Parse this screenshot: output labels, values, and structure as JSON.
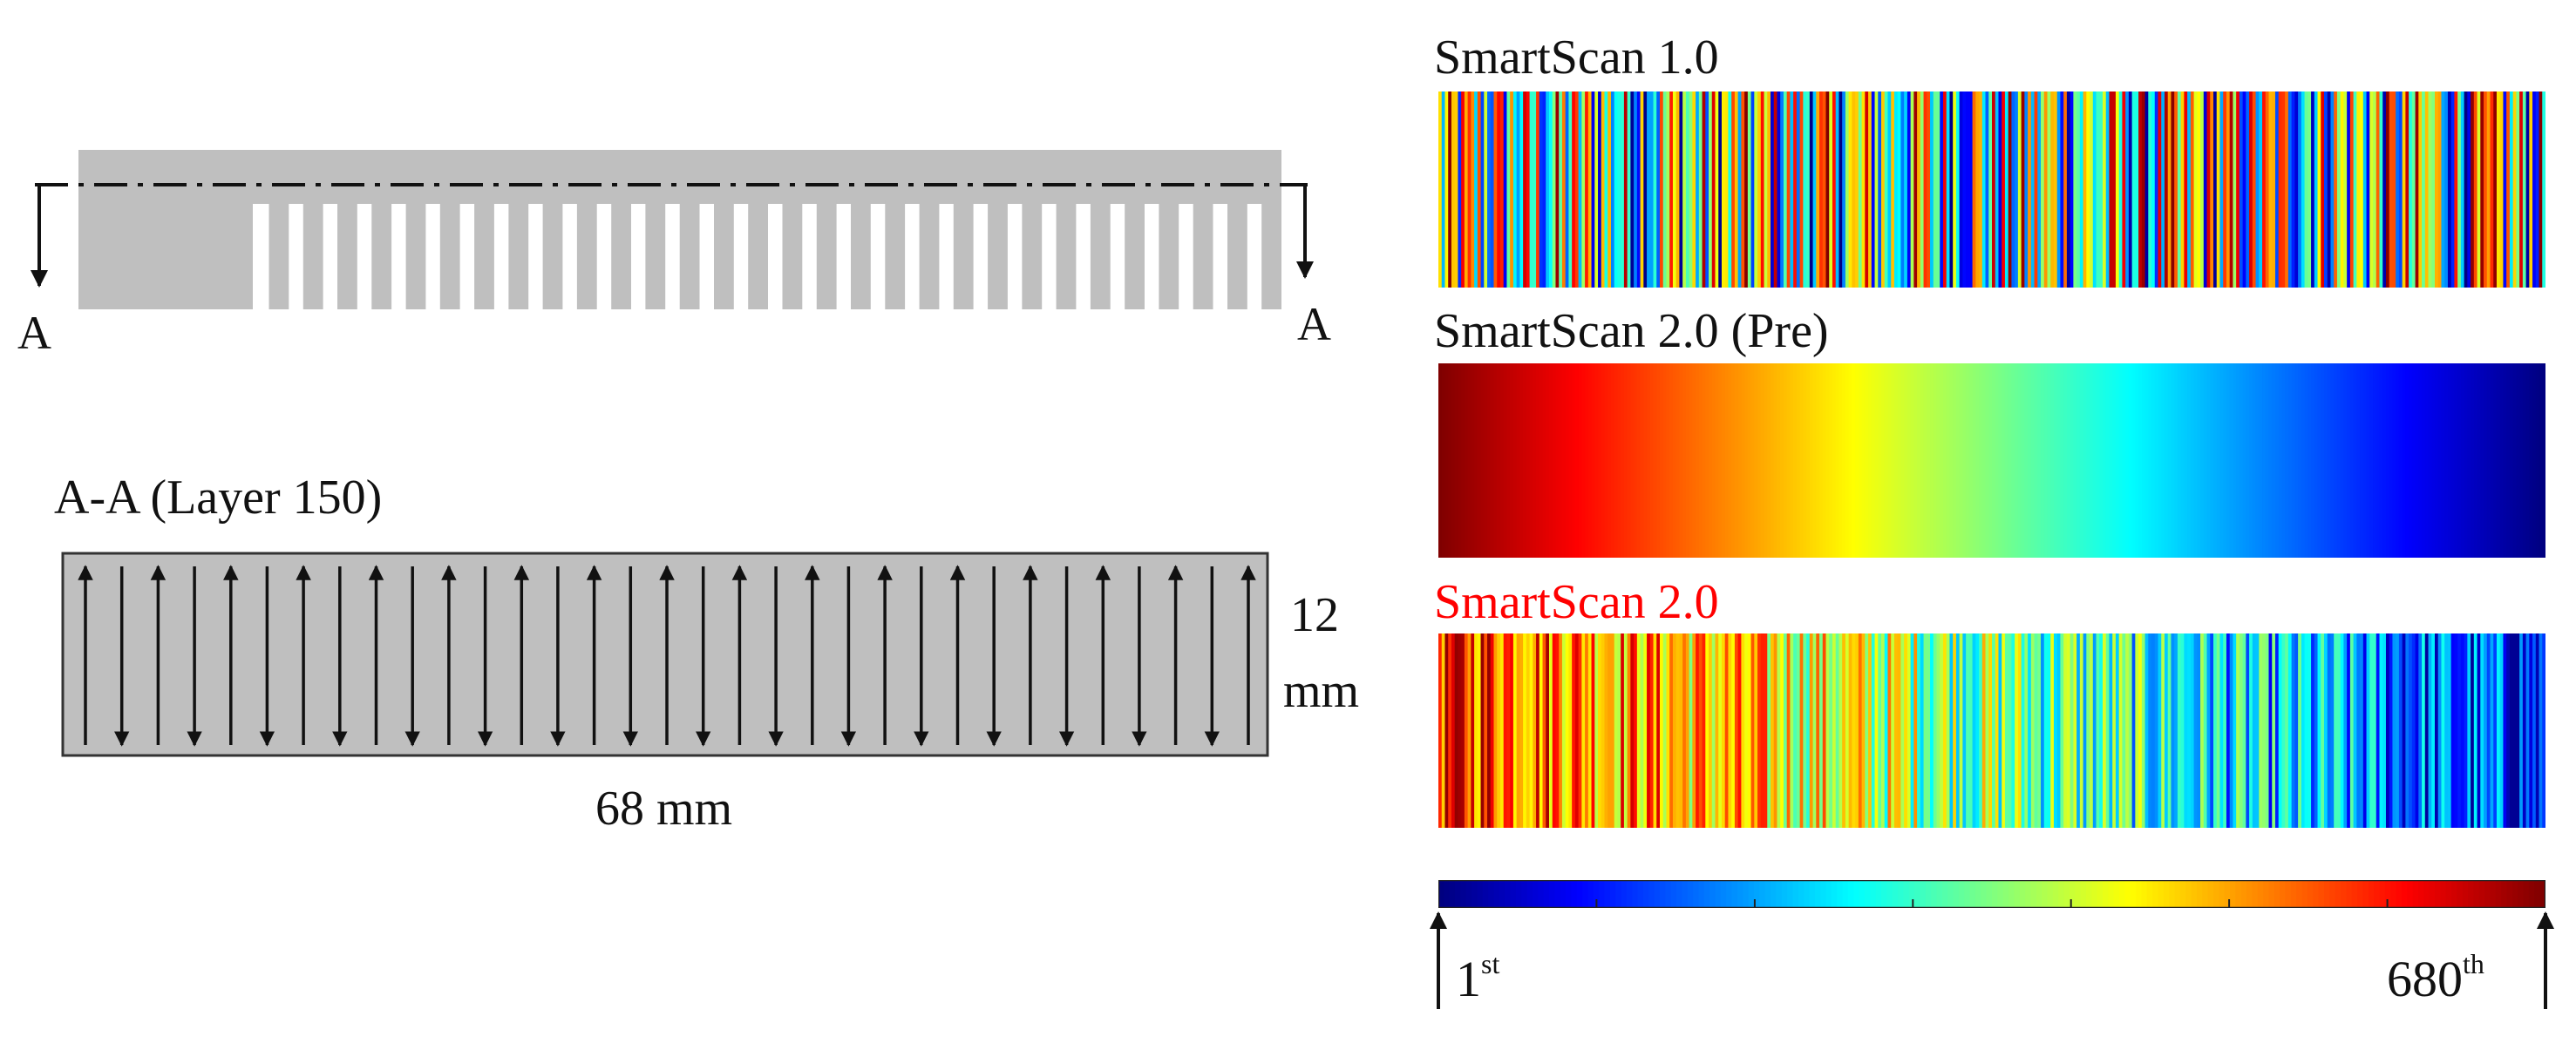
{
  "left": {
    "section_marker": "A",
    "section_title": "A-A (Layer 150)",
    "height_value": "12",
    "height_unit": "mm",
    "width_label": "68 mm"
  },
  "colors": {
    "part_fill": "#bfbfbf",
    "red_label": "#ff0000",
    "arrow": "#111111"
  },
  "panels": {
    "smartscan_10": {
      "label": "SmartScan 1.0",
      "order": "scattered"
    },
    "smartscan_20_pre": {
      "label": "SmartScan 2.0 (Pre)",
      "order": "sequential-descending"
    },
    "smartscan_20": {
      "label": "SmartScan 2.0",
      "label_color": "#ff0000",
      "order": "mostly-descending-with-scatter"
    }
  },
  "colorbar": {
    "colormap": "jet",
    "min_number": "1",
    "min_suffix": "st",
    "max_number": "680",
    "max_suffix": "th",
    "total_tracks": 680
  }
}
